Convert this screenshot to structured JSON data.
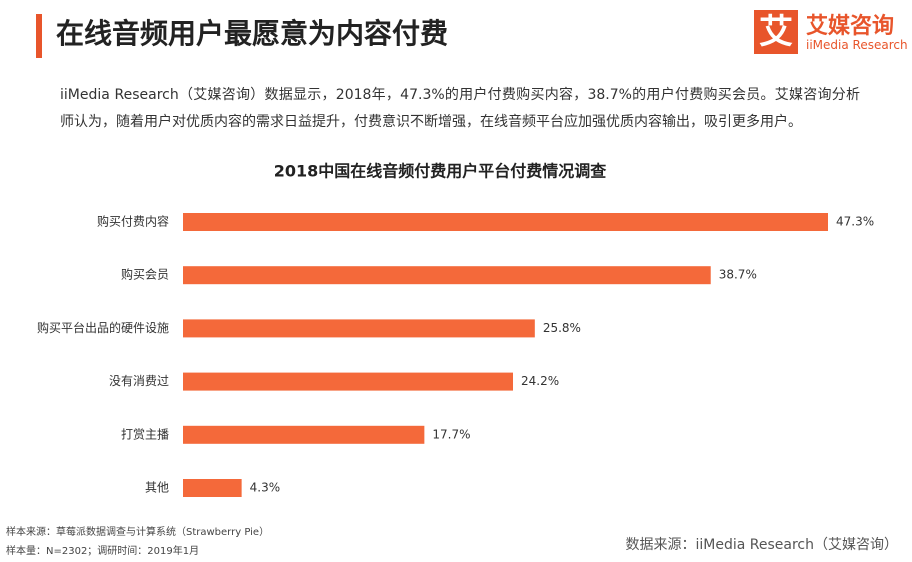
{
  "header": {
    "title": "在线音频用户最愿意为内容付费"
  },
  "logo": {
    "icon": "艾",
    "name": "艾媒咨询",
    "english": "iiMedia Research"
  },
  "paragraph": "iiMedia Research（艾媒咨询）数据显示，2018年，47.3%的用户付费购买内容，38.7%的用户付费购买会员。艾媒咨询分析师认为，随着用户对优质内容的需求日益提升，付费意识不断增强，在线音频平台应加强优质内容输出，吸引更多用户。",
  "chart_data": {
    "type": "bar",
    "orientation": "horizontal",
    "title": "2018中国在线音频付费用户平台付费情况调查",
    "categories": [
      "购买付费内容",
      "购买会员",
      "购买平台出品的硬件设施",
      "没有消费过",
      "打赏主播",
      "其他"
    ],
    "values": [
      47.3,
      38.7,
      25.8,
      24.2,
      17.7,
      4.3
    ],
    "value_labels": [
      "47.3%",
      "38.7%",
      "25.8%",
      "24.2%",
      "17.7%",
      "4.3%"
    ],
    "color": "#f4693a"
  },
  "footer": {
    "sample_source": "样本来源：草莓派数据调查与计算系统（Strawberry Pie）",
    "sample_size": "样本量：N=2302；调研时间：2019年1月",
    "data_source": "数据来源：iiMedia Research（艾媒咨询）"
  }
}
